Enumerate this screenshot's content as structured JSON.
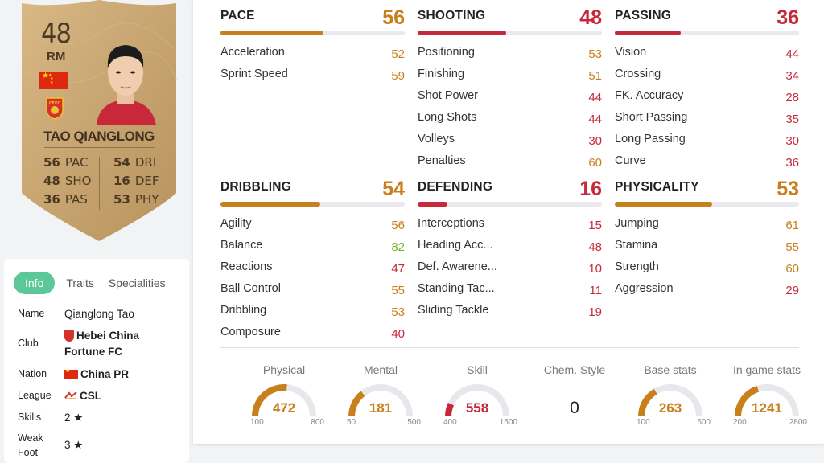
{
  "card": {
    "rating": "48",
    "position": "RM",
    "name": "TAO QIANGLONG",
    "stats": [
      {
        "value": "56",
        "label": "PAC"
      },
      {
        "value": "48",
        "label": "SHO"
      },
      {
        "value": "36",
        "label": "PAS"
      },
      {
        "value": "54",
        "label": "DRI"
      },
      {
        "value": "16",
        "label": "DEF"
      },
      {
        "value": "53",
        "label": "PHY"
      }
    ],
    "flag_icon": "china-flag-icon",
    "club_icon": "hebei-china-fortune-crest-icon",
    "colors": {
      "card_gold": "#c8a472",
      "text": "#4a3a23"
    }
  },
  "info": {
    "tabs": [
      "Info",
      "Traits",
      "Specialities"
    ],
    "active_tab": "Info",
    "rows": [
      {
        "label": "Name",
        "value": "Qianglong Tao"
      },
      {
        "label": "Club",
        "value_line1": "Hebei China",
        "value_line2": "Fortune FC"
      },
      {
        "label": "Nation",
        "value": "China PR"
      },
      {
        "label": "League",
        "value": "CSL"
      },
      {
        "label": "Skills",
        "value": "2"
      },
      {
        "label_line1": "Weak",
        "label_line2": "Foot",
        "value": "3"
      }
    ]
  },
  "groups": [
    {
      "name": "PACE",
      "value": "56",
      "fill": 0.56,
      "color": "orange",
      "attrs": [
        [
          "Acceleration",
          "52",
          "orange"
        ],
        [
          "Sprint Speed",
          "59",
          "orange"
        ]
      ]
    },
    {
      "name": "SHOOTING",
      "value": "48",
      "fill": 0.48,
      "color": "red",
      "attrs": [
        [
          "Positioning",
          "53",
          "orange"
        ],
        [
          "Finishing",
          "51",
          "orange"
        ],
        [
          "Shot Power",
          "44",
          "red"
        ],
        [
          "Long Shots",
          "44",
          "red"
        ],
        [
          "Volleys",
          "30",
          "red"
        ],
        [
          "Penalties",
          "60",
          "orange"
        ]
      ]
    },
    {
      "name": "PASSING",
      "value": "36",
      "fill": 0.36,
      "color": "red",
      "attrs": [
        [
          "Vision",
          "44",
          "red"
        ],
        [
          "Crossing",
          "34",
          "red"
        ],
        [
          "FK. Accuracy",
          "28",
          "red"
        ],
        [
          "Short Passing",
          "35",
          "red"
        ],
        [
          "Long Passing",
          "30",
          "red"
        ],
        [
          "Curve",
          "36",
          "red"
        ]
      ]
    },
    {
      "name": "DRIBBLING",
      "value": "54",
      "fill": 0.54,
      "color": "orange",
      "attrs": [
        [
          "Agility",
          "56",
          "orange"
        ],
        [
          "Balance",
          "82",
          "green"
        ],
        [
          "Reactions",
          "47",
          "red"
        ],
        [
          "Ball Control",
          "55",
          "orange"
        ],
        [
          "Dribbling",
          "53",
          "orange"
        ],
        [
          "Composure",
          "40",
          "red"
        ]
      ]
    },
    {
      "name": "DEFENDING",
      "value": "16",
      "fill": 0.16,
      "color": "red",
      "attrs": [
        [
          "Interceptions",
          "15",
          "red"
        ],
        [
          "Heading Acc...",
          "48",
          "red"
        ],
        [
          "Def. Awarene...",
          "10",
          "red"
        ],
        [
          "Standing Tac...",
          "11",
          "red"
        ],
        [
          "Sliding Tackle",
          "19",
          "red"
        ]
      ]
    },
    {
      "name": "PHYSICALITY",
      "value": "53",
      "fill": 0.53,
      "color": "orange",
      "attrs": [
        [
          "Jumping",
          "61",
          "orange"
        ],
        [
          "Stamina",
          "55",
          "orange"
        ],
        [
          "Strength",
          "60",
          "orange"
        ],
        [
          "Aggression",
          "29",
          "red"
        ]
      ]
    }
  ],
  "gauges": [
    {
      "label": "Physical",
      "value": "472",
      "min": "100",
      "max": "800",
      "fill": 0.53,
      "color": "orange"
    },
    {
      "label": "Mental",
      "value": "181",
      "min": "50",
      "max": "500",
      "fill": 0.29,
      "color": "orange"
    },
    {
      "label": "Skill",
      "value": "558",
      "min": "400",
      "max": "1500",
      "fill": 0.14,
      "color": "red"
    },
    {
      "label": "Chem. Style",
      "value": "0"
    },
    {
      "label": "Base stats",
      "value": "263",
      "min": "100",
      "max": "600",
      "fill": 0.33,
      "color": "orange"
    },
    {
      "label": "In game stats",
      "value": "1241",
      "min": "200",
      "max": "2800",
      "fill": 0.4,
      "color": "orange"
    }
  ],
  "colors": {
    "orange": "#c8801d",
    "red": "#c62a3a",
    "green": "#7ab726",
    "info_tab_active": "#5cc89a"
  }
}
